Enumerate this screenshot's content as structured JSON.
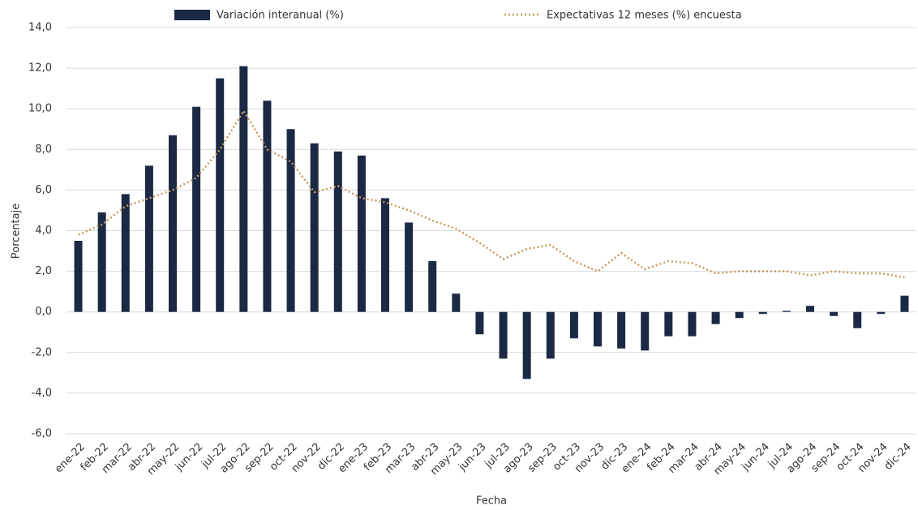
{
  "chart_data": {
    "type": "bar_line",
    "x_label": "Fecha",
    "y_label": "Porcentaje",
    "categories": [
      "ene-22",
      "feb-22",
      "mar-22",
      "abr-22",
      "may-22",
      "jun-22",
      "jul-22",
      "ago-22",
      "sep-22",
      "oct-22",
      "nov-22",
      "dic-22",
      "ene-23",
      "feb-23",
      "mar-23",
      "abr-23",
      "may-23",
      "jun-23",
      "jul-23",
      "ago-23",
      "sep-23",
      "oct-23",
      "nov-23",
      "dic-23",
      "ene-24",
      "feb-24",
      "mar-24",
      "abr-24",
      "may-24",
      "jun-24",
      "jul-24",
      "ago-24",
      "sep-24",
      "oct-24",
      "nov-24",
      "dic-24"
    ],
    "series": [
      {
        "name": "Variación interanual (%)",
        "kind": "bar",
        "color": "#1b2945",
        "values": [
          3.5,
          4.9,
          5.8,
          7.2,
          8.7,
          10.1,
          11.5,
          12.1,
          10.4,
          9.0,
          8.3,
          7.9,
          7.7,
          5.6,
          4.4,
          2.5,
          0.9,
          -1.1,
          -2.3,
          -3.3,
          -2.3,
          -1.3,
          -1.7,
          -1.8,
          -1.9,
          -1.2,
          -1.2,
          -0.6,
          -0.3,
          -0.1,
          0.05,
          0.3,
          -0.2,
          -0.8,
          -0.1,
          0.8
        ]
      },
      {
        "name": "Expectativas 12 meses (%) encuesta",
        "kind": "line",
        "color": "#c9985e",
        "values": [
          3.8,
          4.3,
          5.2,
          5.6,
          6.0,
          6.6,
          8.0,
          9.9,
          8.0,
          7.4,
          5.9,
          6.2,
          5.6,
          5.4,
          5.0,
          4.5,
          4.1,
          3.4,
          2.6,
          3.1,
          3.3,
          2.5,
          2.0,
          2.9,
          2.1,
          2.5,
          2.4,
          1.9,
          2.0,
          2.0,
          2.0,
          1.8,
          2.0,
          1.9,
          1.9,
          1.7
        ]
      }
    ],
    "ylim": [
      -6,
      14
    ],
    "yticks": [
      {
        "value": -6,
        "label": "-6,0"
      },
      {
        "value": -4,
        "label": "-4,0"
      },
      {
        "value": -2,
        "label": "-2,0"
      },
      {
        "value": 0,
        "label": "0,0"
      },
      {
        "value": 2,
        "label": "2,0"
      },
      {
        "value": 4,
        "label": "4,0"
      },
      {
        "value": 6,
        "label": "6,0"
      },
      {
        "value": 8,
        "label": "8,0"
      },
      {
        "value": 10,
        "label": "10,0"
      },
      {
        "value": 12,
        "label": "12,0"
      },
      {
        "value": 14,
        "label": "14,0"
      }
    ],
    "grid": true,
    "legend": "top"
  }
}
